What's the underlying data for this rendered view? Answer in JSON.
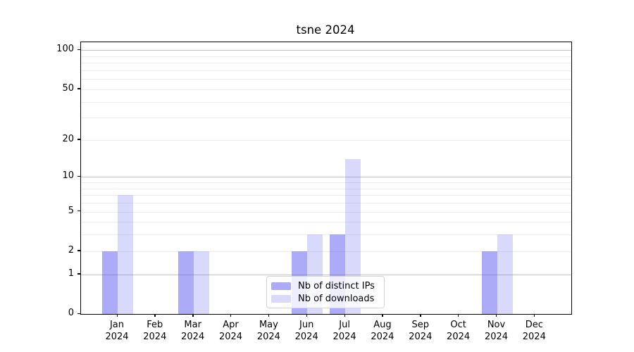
{
  "chart_data": {
    "type": "bar",
    "title": "tsne 2024",
    "categories": [
      "Jan",
      "Feb",
      "Mar",
      "Apr",
      "May",
      "Jun",
      "Jul",
      "Aug",
      "Sep",
      "Oct",
      "Nov",
      "Dec"
    ],
    "year_label": "2024",
    "series": [
      {
        "name": "Nb of distinct IPs",
        "key": "distinct-ips",
        "color": "rgba(77,77,240,0.47)",
        "values": [
          2,
          0,
          2,
          0,
          0,
          2,
          3,
          0,
          0,
          0,
          2,
          0
        ]
      },
      {
        "name": "Nb of downloads",
        "key": "downloads",
        "color": "rgba(77,77,240,0.21)",
        "values": [
          7,
          0,
          2,
          0,
          0,
          3,
          14,
          0,
          0,
          0,
          3,
          0
        ]
      }
    ],
    "y_axis": {
      "scale": "log1p",
      "min": 0,
      "max": 115,
      "labeled_ticks": [
        0,
        1,
        2,
        5,
        10,
        20,
        50,
        100
      ],
      "major_gridlines": [
        1,
        10,
        100
      ],
      "minor_gridlines": [
        2,
        3,
        4,
        5,
        6,
        7,
        8,
        9,
        20,
        30,
        40,
        50,
        60,
        70,
        80,
        90
      ]
    },
    "legend": {
      "position": "lower center",
      "entries": [
        "Nb of distinct IPs",
        "Nb of downloads"
      ]
    },
    "grid": true
  }
}
